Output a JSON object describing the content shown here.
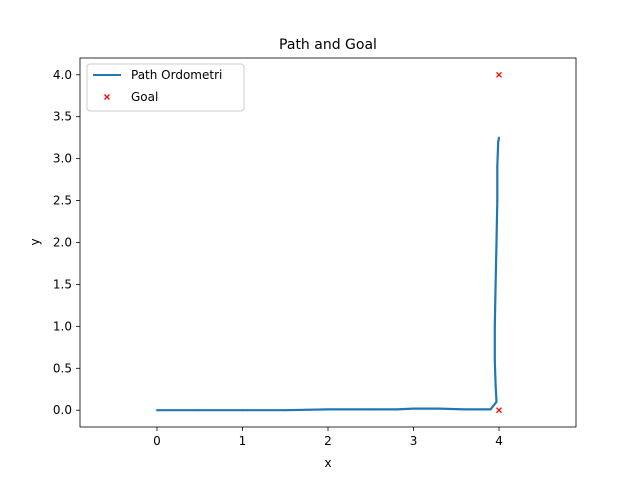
{
  "chart_data": {
    "type": "line",
    "title": "Path and Goal",
    "xlabel": "x",
    "ylabel": "y",
    "xlim": [
      -0.9,
      4.9
    ],
    "ylim": [
      -0.2,
      4.2
    ],
    "xticks": [
      0,
      1,
      2,
      3,
      4
    ],
    "yticks": [
      0.0,
      0.5,
      1.0,
      1.5,
      2.0,
      2.5,
      3.0,
      3.5,
      4.0
    ],
    "xtick_labels": [
      "0",
      "1",
      "2",
      "3",
      "4"
    ],
    "ytick_labels": [
      "0.0",
      "0.5",
      "1.0",
      "1.5",
      "2.0",
      "2.5",
      "3.0",
      "3.5",
      "4.0"
    ],
    "grid": false,
    "legend_position": "top-left",
    "series": [
      {
        "name": "Path Ordometri",
        "kind": "line",
        "color": "#1f77b4",
        "x": [
          0.0,
          0.5,
          1.0,
          1.5,
          2.0,
          2.5,
          2.8,
          3.0,
          3.3,
          3.6,
          3.9,
          3.97,
          3.96,
          3.95,
          3.95,
          3.96,
          3.97,
          3.98,
          3.98,
          3.99,
          4.0
        ],
        "y": [
          0.0,
          0.0,
          0.0,
          0.0,
          0.01,
          0.01,
          0.01,
          0.02,
          0.02,
          0.01,
          0.01,
          0.1,
          0.3,
          0.6,
          1.0,
          1.5,
          2.0,
          2.5,
          2.9,
          3.2,
          3.25
        ]
      },
      {
        "name": "Goal",
        "kind": "scatter",
        "marker": "x",
        "color": "#ff0000",
        "x": [
          4.0,
          4.0
        ],
        "y": [
          4.0,
          0.0
        ]
      }
    ]
  }
}
